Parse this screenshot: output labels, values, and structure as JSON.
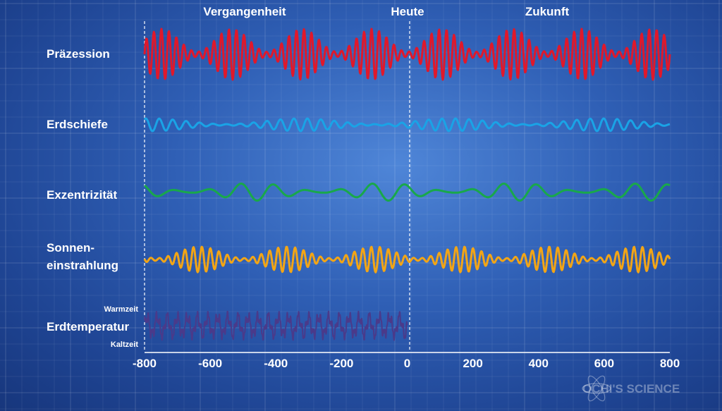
{
  "chart_data": {
    "type": "line",
    "period_labels": [
      "Vergangenheit",
      "Heute",
      "Zukunft"
    ],
    "xticks": [
      -800,
      -600,
      -400,
      -200,
      0,
      200,
      400,
      600,
      800
    ],
    "xlim": [
      -800,
      800
    ],
    "series": [
      {
        "name": "Präzession",
        "color": "#e0182b",
        "x_range": [
          -800,
          800
        ],
        "cycles": 70,
        "amplitude": 0.9,
        "envelope_cycles": 7.5,
        "stroke": 3
      },
      {
        "name": "Erdschiefe",
        "color": "#1aa3e6",
        "x_range": [
          -800,
          800
        ],
        "cycles": 39,
        "amplitude": 0.45,
        "envelope_cycles": 3.5,
        "stroke": 3
      },
      {
        "name": "Exzentrizität",
        "color": "#19a84a",
        "x_range": [
          -800,
          800
        ],
        "cycles": 16,
        "amplitude": 0.45,
        "envelope_cycles": 4,
        "stroke": 3
      },
      {
        "name": "Sonneneinstrahlung",
        "color": "#f2a516",
        "x_range": [
          -800,
          800
        ],
        "cycles": 62,
        "amplitude": 0.7,
        "envelope_cycles": 6,
        "stroke": 3
      },
      {
        "name": "Erdtemperatur",
        "color": "#4a3a8a",
        "x_range": [
          -800,
          0
        ],
        "cycles": 26,
        "amplitude": 0.8,
        "envelope_cycles": 3,
        "stroke": 2
      }
    ],
    "row_labels": {
      "praezession": "Präzession",
      "erdschiefe": "Erdschiefe",
      "exzentrizitaet": "Exzentrizität",
      "sonne_line1": "Sonnen-",
      "sonne_line2": "einstrahlung",
      "erdtemperatur": "Erdtemperatur",
      "warmzeit": "Warmzeit",
      "kaltzeit": "Kaltzeit"
    },
    "grid": true
  },
  "watermark": "OCHI'S SCIENCE"
}
